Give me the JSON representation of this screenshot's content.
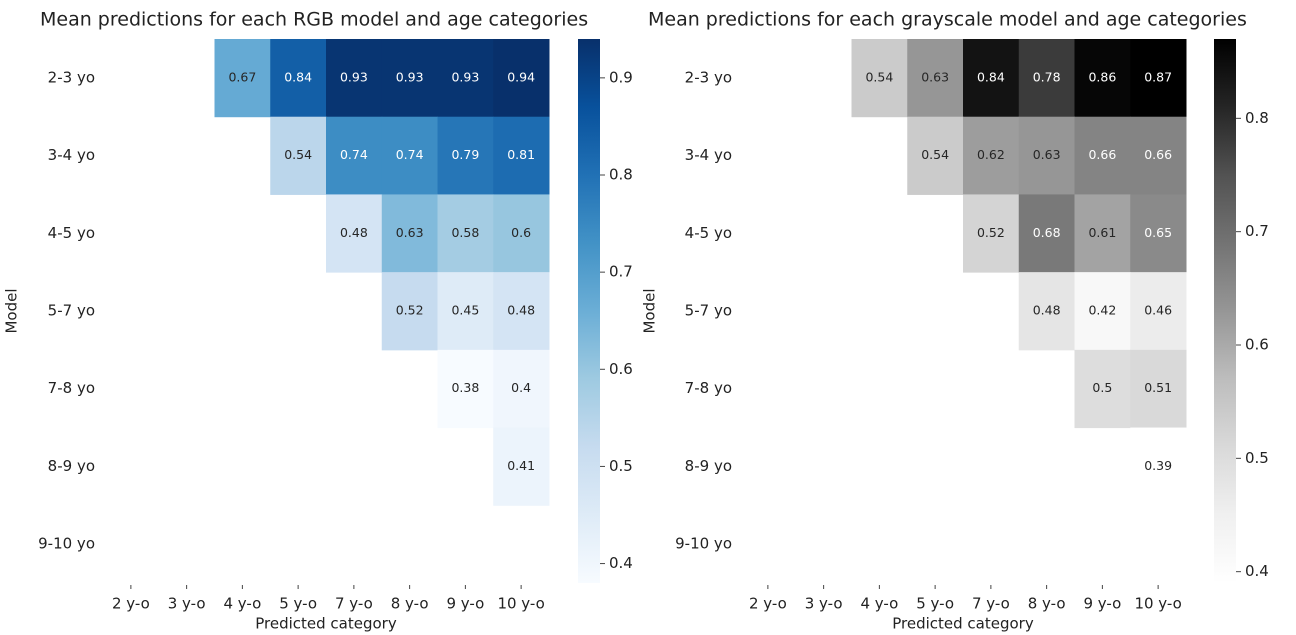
{
  "chart_data": [
    {
      "type": "heatmap",
      "title": "Mean predictions for each RGB model and age categories",
      "x_label": "Predicted category",
      "y_label": "Model",
      "categories": [
        "2 y-o",
        "3 y-o",
        "4 y-o",
        "5 y-o",
        "7 y-o",
        "8 y-o",
        "9 y-o",
        "10 y-o"
      ],
      "rows": [
        "2-3 yo",
        "3-4 yo",
        "4-5 yo",
        "5-7 yo",
        "7-8 yo",
        "8-9 yo",
        "9-10 yo"
      ],
      "values": [
        [
          null,
          null,
          0.67,
          0.84,
          0.93,
          0.93,
          0.93,
          0.94
        ],
        [
          null,
          null,
          null,
          0.54,
          0.74,
          0.74,
          0.79,
          0.81
        ],
        [
          null,
          null,
          null,
          null,
          0.48,
          0.63,
          0.58,
          0.6
        ],
        [
          null,
          null,
          null,
          null,
          null,
          0.52,
          0.45,
          0.48
        ],
        [
          null,
          null,
          null,
          null,
          null,
          null,
          0.38,
          0.4
        ],
        [
          null,
          null,
          null,
          null,
          null,
          null,
          null,
          0.41
        ],
        [
          null,
          null,
          null,
          null,
          null,
          null,
          null,
          null
        ]
      ],
      "clim": [
        0.38,
        0.94
      ],
      "cticks": [
        0.4,
        0.5,
        0.6,
        0.7,
        0.8,
        0.9
      ],
      "cmap": [
        "#f7fbff",
        "#deebf7",
        "#c6dbef",
        "#9ecae1",
        "#6baed6",
        "#4292c6",
        "#2171b5",
        "#08519c",
        "#08306b"
      ]
    },
    {
      "type": "heatmap",
      "title": "Mean predictions for each grayscale model and age categories",
      "x_label": "Predicted category",
      "y_label": "Model",
      "categories": [
        "2 y-o",
        "3 y-o",
        "4 y-o",
        "5 y-o",
        "7 y-o",
        "8 y-o",
        "9 y-o",
        "10 y-o"
      ],
      "rows": [
        "2-3 yo",
        "3-4 yo",
        "4-5 yo",
        "5-7 yo",
        "7-8 yo",
        "8-9 yo",
        "9-10 yo"
      ],
      "values": [
        [
          null,
          null,
          0.54,
          0.63,
          0.84,
          0.78,
          0.86,
          0.87
        ],
        [
          null,
          null,
          null,
          0.54,
          0.62,
          0.63,
          0.66,
          0.66
        ],
        [
          null,
          null,
          null,
          null,
          0.52,
          0.68,
          0.61,
          0.65
        ],
        [
          null,
          null,
          null,
          null,
          null,
          0.48,
          0.42,
          0.46
        ],
        [
          null,
          null,
          null,
          null,
          null,
          null,
          0.5,
          0.51
        ],
        [
          null,
          null,
          null,
          null,
          null,
          null,
          null,
          0.39
        ],
        [
          null,
          null,
          null,
          null,
          null,
          null,
          null,
          null
        ]
      ],
      "clim": [
        0.39,
        0.87
      ],
      "cticks": [
        0.4,
        0.5,
        0.6,
        0.7,
        0.8
      ],
      "cmap": [
        "#ffffff",
        "#f0f0f0",
        "#d9d9d9",
        "#bdbdbd",
        "#969696",
        "#737373",
        "#525252",
        "#252525",
        "#000000"
      ]
    }
  ]
}
